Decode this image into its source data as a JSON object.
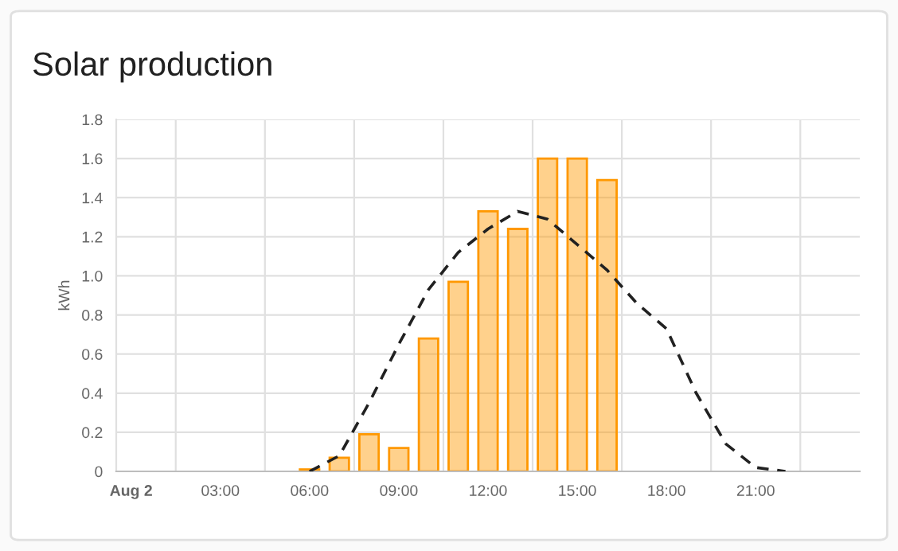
{
  "chart_data": {
    "type": "bar",
    "title": "Solar production",
    "ylabel": "kWh",
    "xlim": [
      -0.5,
      24.5
    ],
    "xticks": [
      {
        "value": 0,
        "label": "Aug 2"
      },
      {
        "value": 3,
        "label": "03:00"
      },
      {
        "value": 6,
        "label": "06:00"
      },
      {
        "value": 9,
        "label": "09:00"
      },
      {
        "value": 12,
        "label": "12:00"
      },
      {
        "value": 15,
        "label": "15:00"
      },
      {
        "value": 18,
        "label": "18:00"
      },
      {
        "value": 21,
        "label": "21:00"
      }
    ],
    "ylim": [
      0,
      1.8
    ],
    "yticks": [
      0,
      0.2,
      0.4,
      0.6,
      0.8,
      {
        "value": 1.0,
        "label": "1.0"
      },
      1.2,
      1.4,
      1.6,
      1.8
    ],
    "grid": true,
    "series": [
      {
        "color": "#ff9800",
        "x": [
          6,
          7,
          8,
          9,
          10,
          11,
          12,
          13,
          14,
          15,
          16
        ],
        "values": [
          0.01,
          0.07,
          0.19,
          0.12,
          0.68,
          0.97,
          1.33,
          1.24,
          1.6,
          1.6,
          1.49
        ]
      },
      {
        "type": "line",
        "color": "#212121",
        "line_style": "dashed",
        "marker": "none",
        "x": [
          6,
          7,
          8,
          9,
          10,
          11,
          12,
          13,
          14,
          15,
          16,
          17,
          18,
          19,
          20,
          21,
          22
        ],
        "values": [
          0,
          0.08,
          0.35,
          0.65,
          0.93,
          1.12,
          1.24,
          1.33,
          1.29,
          1.16,
          1.03,
          0.86,
          0.73,
          0.4,
          0.14,
          0.02,
          0
        ]
      }
    ]
  }
}
